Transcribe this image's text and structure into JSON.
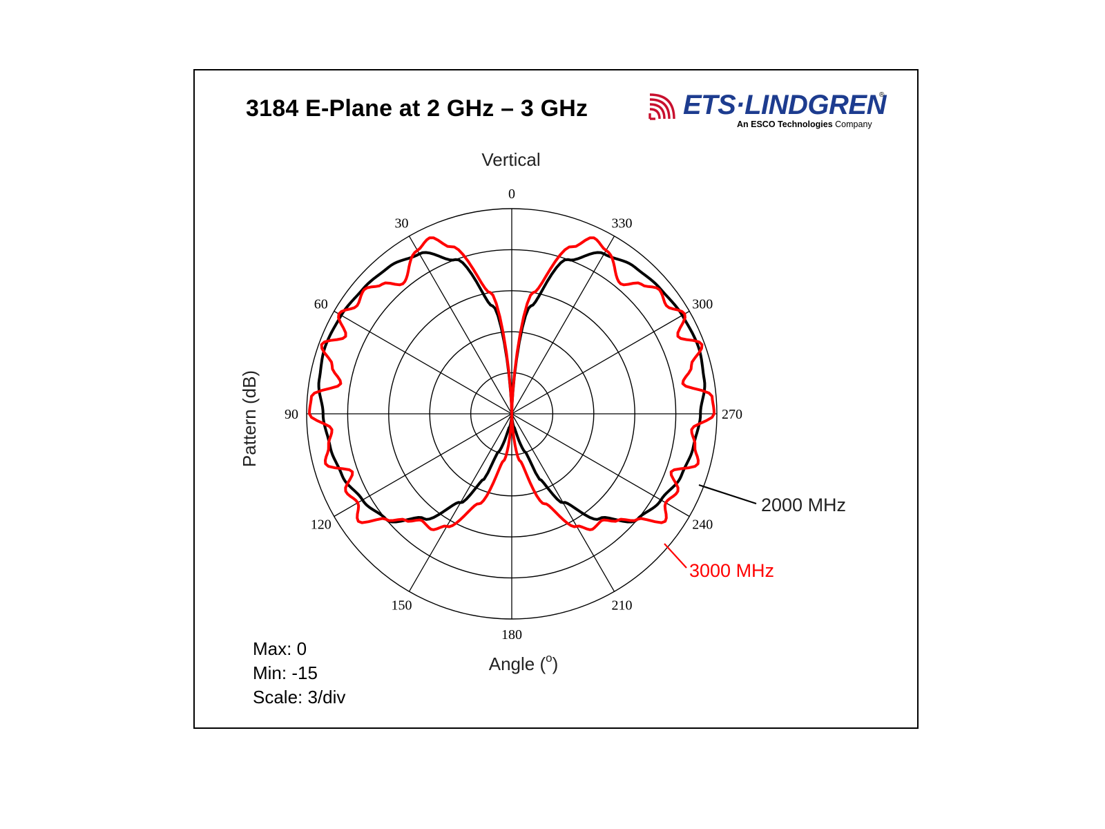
{
  "chart_data": {
    "type": "polar-line",
    "title": "3184 E-Plane at 2 GHz – 3 GHz",
    "subtitle": "Vertical",
    "ylabel": "Pattern (dB)",
    "xlabel_text": "Angle (",
    "xlabel_unit": "o",
    "xlabel_close": ")",
    "angle_direction": "counterclockwise",
    "zero_at": "top",
    "angle_ticks": [
      "0",
      "30",
      "60",
      "90",
      "120",
      "150",
      "180",
      "210",
      "240",
      "270",
      "300",
      "330"
    ],
    "radial_range_db": [
      -15,
      0
    ],
    "radial_step_db": 3,
    "grid": true,
    "stats": {
      "max": "Max: 0",
      "min": "Min: -15",
      "scale": "Scale: 3/div"
    },
    "series": [
      {
        "name": "2000 MHz",
        "color": "#000000",
        "angles": [
          0,
          10,
          20,
          30,
          40,
          50,
          60,
          70,
          80,
          90,
          100,
          110,
          120,
          130,
          140,
          150,
          157,
          160,
          170,
          180,
          190,
          200,
          203,
          210,
          220,
          230,
          240,
          250,
          260,
          270,
          280,
          290,
          300,
          310,
          320,
          330,
          340,
          350,
          360
        ],
        "values": [
          -15,
          -7,
          -3,
          -1.5,
          -1,
          -0.8,
          -0.6,
          -0.5,
          -0.7,
          -1.2,
          -1.5,
          -1.8,
          -2.4,
          -3,
          -5,
          -7.5,
          -9.8,
          -12,
          -14,
          -15,
          -14,
          -12,
          -9.8,
          -7.5,
          -5,
          -3,
          -2.4,
          -1.8,
          -1.5,
          -1.2,
          -0.7,
          -0.5,
          -0.6,
          -0.8,
          -1,
          -1.5,
          -3,
          -7,
          -15
        ]
      },
      {
        "name": "3000 MHz",
        "color": "#ff0000",
        "angles": [
          0,
          10,
          20,
          25,
          30,
          40,
          45,
          50,
          55,
          60,
          65,
          70,
          75,
          80,
          85,
          90,
          95,
          100,
          105,
          110,
          115,
          120,
          125,
          130,
          135,
          140,
          145,
          150,
          160,
          170,
          180,
          190,
          200,
          210,
          215,
          220,
          225,
          230,
          235,
          240,
          245,
          250,
          255,
          260,
          265,
          270,
          275,
          280,
          285,
          290,
          295,
          300,
          305,
          310,
          315,
          320,
          330,
          335,
          340,
          350,
          360
        ],
        "values": [
          -15,
          -6,
          -2,
          -0.8,
          -1.2,
          -2.6,
          -1.6,
          -0.9,
          -1.2,
          -0.4,
          -1.6,
          -0.2,
          -1.4,
          -2.3,
          -0.3,
          -0.2,
          -1.8,
          -1.4,
          -0.9,
          -2.6,
          -1.6,
          -2.0,
          -1.3,
          -3.0,
          -4.0,
          -4.8,
          -4.7,
          -5.5,
          -8,
          -11.5,
          -15,
          -11.5,
          -8,
          -5.5,
          -4.7,
          -4.8,
          -4.0,
          -3.0,
          -1.3,
          -2.0,
          -1.6,
          -2.6,
          -0.9,
          -1.4,
          -1.8,
          -0.2,
          -0.3,
          -2.3,
          -1.4,
          -0.2,
          -1.6,
          -0.4,
          -1.2,
          -0.9,
          -1.6,
          -2.6,
          -1.2,
          -0.8,
          -2,
          -6,
          -15
        ]
      }
    ]
  },
  "logo": {
    "wordmark": "ETS·LINDGREN",
    "reg": "®",
    "tagline_pre": "An ESCO Technologies",
    "tagline_post": " Company",
    "icon": "signal-waves-icon"
  }
}
